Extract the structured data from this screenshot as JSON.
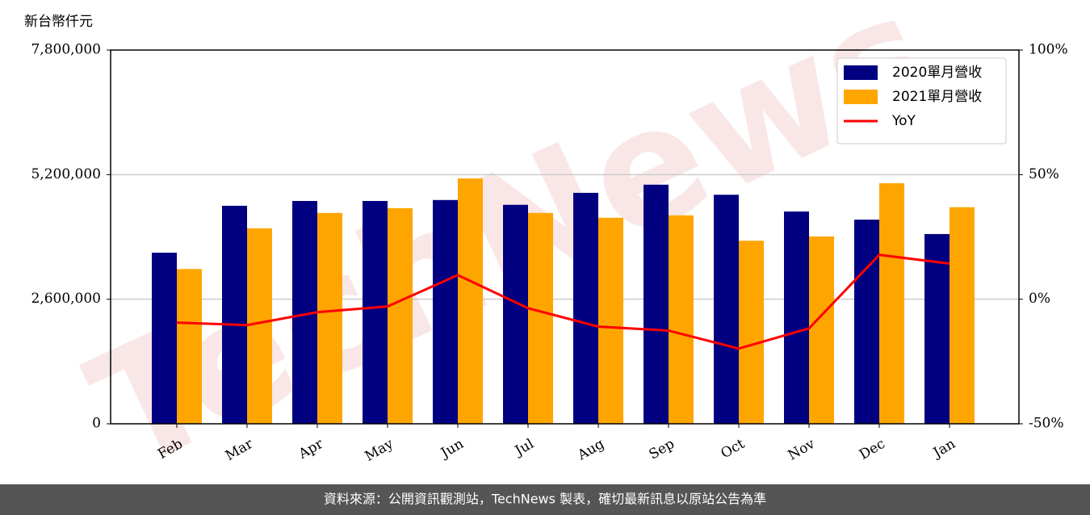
{
  "chart_data": {
    "type": "bar",
    "y_label": "新台幣仟元",
    "watermark": "TechNews",
    "footer": "資料來源：公開資訊觀測站，TechNews 製表，確切最新訊息以原站公告為準",
    "categories": [
      "Feb",
      "Mar",
      "Apr",
      "May",
      "Jun",
      "Jul",
      "Aug",
      "Sep",
      "Oct",
      "Nov",
      "Dec",
      "Jan"
    ],
    "series": [
      {
        "name": "2020單月營收",
        "color": "#000080",
        "values": [
          3570000,
          4550000,
          4650000,
          4650000,
          4670000,
          4570000,
          4820000,
          4990000,
          4780000,
          4430000,
          4260000,
          3960000
        ]
      },
      {
        "name": "2021單月營收",
        "color": "#ffa500",
        "values": [
          3230000,
          4080000,
          4400000,
          4500000,
          5120000,
          4400000,
          4300000,
          4350000,
          3820000,
          3910000,
          5020000,
          4520000
        ]
      },
      {
        "name": "YoY",
        "color": "#ff0000",
        "type": "line",
        "axis": "y2",
        "values": [
          -9.4,
          -10.4,
          -5.2,
          -2.9,
          9.7,
          -3.6,
          -11,
          -12.6,
          -19.8,
          -11.7,
          17.8,
          14.3
        ]
      }
    ],
    "ylim": [
      0,
      7800000
    ],
    "yticks": [
      0,
      {
        "value": 2600000,
        "label": "2,600,000"
      },
      {
        "value": 5200000,
        "label": "5,200,000"
      },
      {
        "value": 7800000,
        "label": "7,800,000"
      }
    ],
    "y2lim": [
      -50,
      100
    ],
    "y2ticks": [
      {
        "value": -50,
        "label": "-50%"
      },
      {
        "value": 0,
        "label": "0%"
      },
      {
        "value": 50,
        "label": "50%"
      },
      {
        "value": 100,
        "label": "100%"
      }
    ],
    "grid": true,
    "legend": "upper right"
  }
}
